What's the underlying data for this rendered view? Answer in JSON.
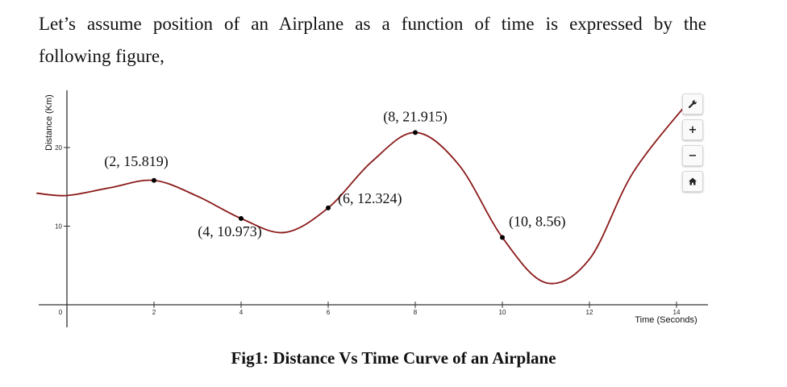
{
  "intro": {
    "line1": "Let’s assume position of an Airplane as a function of time is expressed by the",
    "line2": "following figure,"
  },
  "caption": "Fig1: Distance Vs Time Curve of an Airplane",
  "toolbar": {
    "settings": "wrench-icon",
    "zoom_in": "+",
    "zoom_out": "−",
    "home": "home-icon"
  },
  "chart_data": {
    "type": "line",
    "xlabel": "Time (Seconds)",
    "ylabel": "Distance (Km)",
    "xlim": [
      0,
      14
    ],
    "ylim": [
      0,
      26
    ],
    "x_ticks": [
      0,
      2,
      4,
      6,
      8,
      10,
      12,
      14
    ],
    "y_ticks": [
      10,
      20
    ],
    "grid": false,
    "curve_color": "#8b1a1a",
    "point_color": "#000000",
    "series": [
      {
        "x": [
          -0.7,
          0,
          1,
          2,
          3,
          4,
          5,
          6,
          7,
          8,
          9,
          10,
          11,
          12,
          13,
          14.3
        ],
        "values": [
          14.2,
          13.9,
          14.9,
          15.819,
          13.8,
          10.973,
          9.2,
          12.324,
          18.2,
          21.915,
          17.8,
          8.56,
          2.8,
          5.8,
          16.8,
          26
        ]
      }
    ],
    "points": [
      {
        "x": 2,
        "y": 15.819,
        "label": "(2, 15.819)"
      },
      {
        "x": 4,
        "y": 10.973,
        "label": "(4, 10.973)"
      },
      {
        "x": 6,
        "y": 12.324,
        "label": "(6, 12.324)"
      },
      {
        "x": 8,
        "y": 21.915,
        "label": "(8, 21.915)"
      },
      {
        "x": 10,
        "y": 8.56,
        "label": "(10, 8.56)"
      }
    ]
  }
}
